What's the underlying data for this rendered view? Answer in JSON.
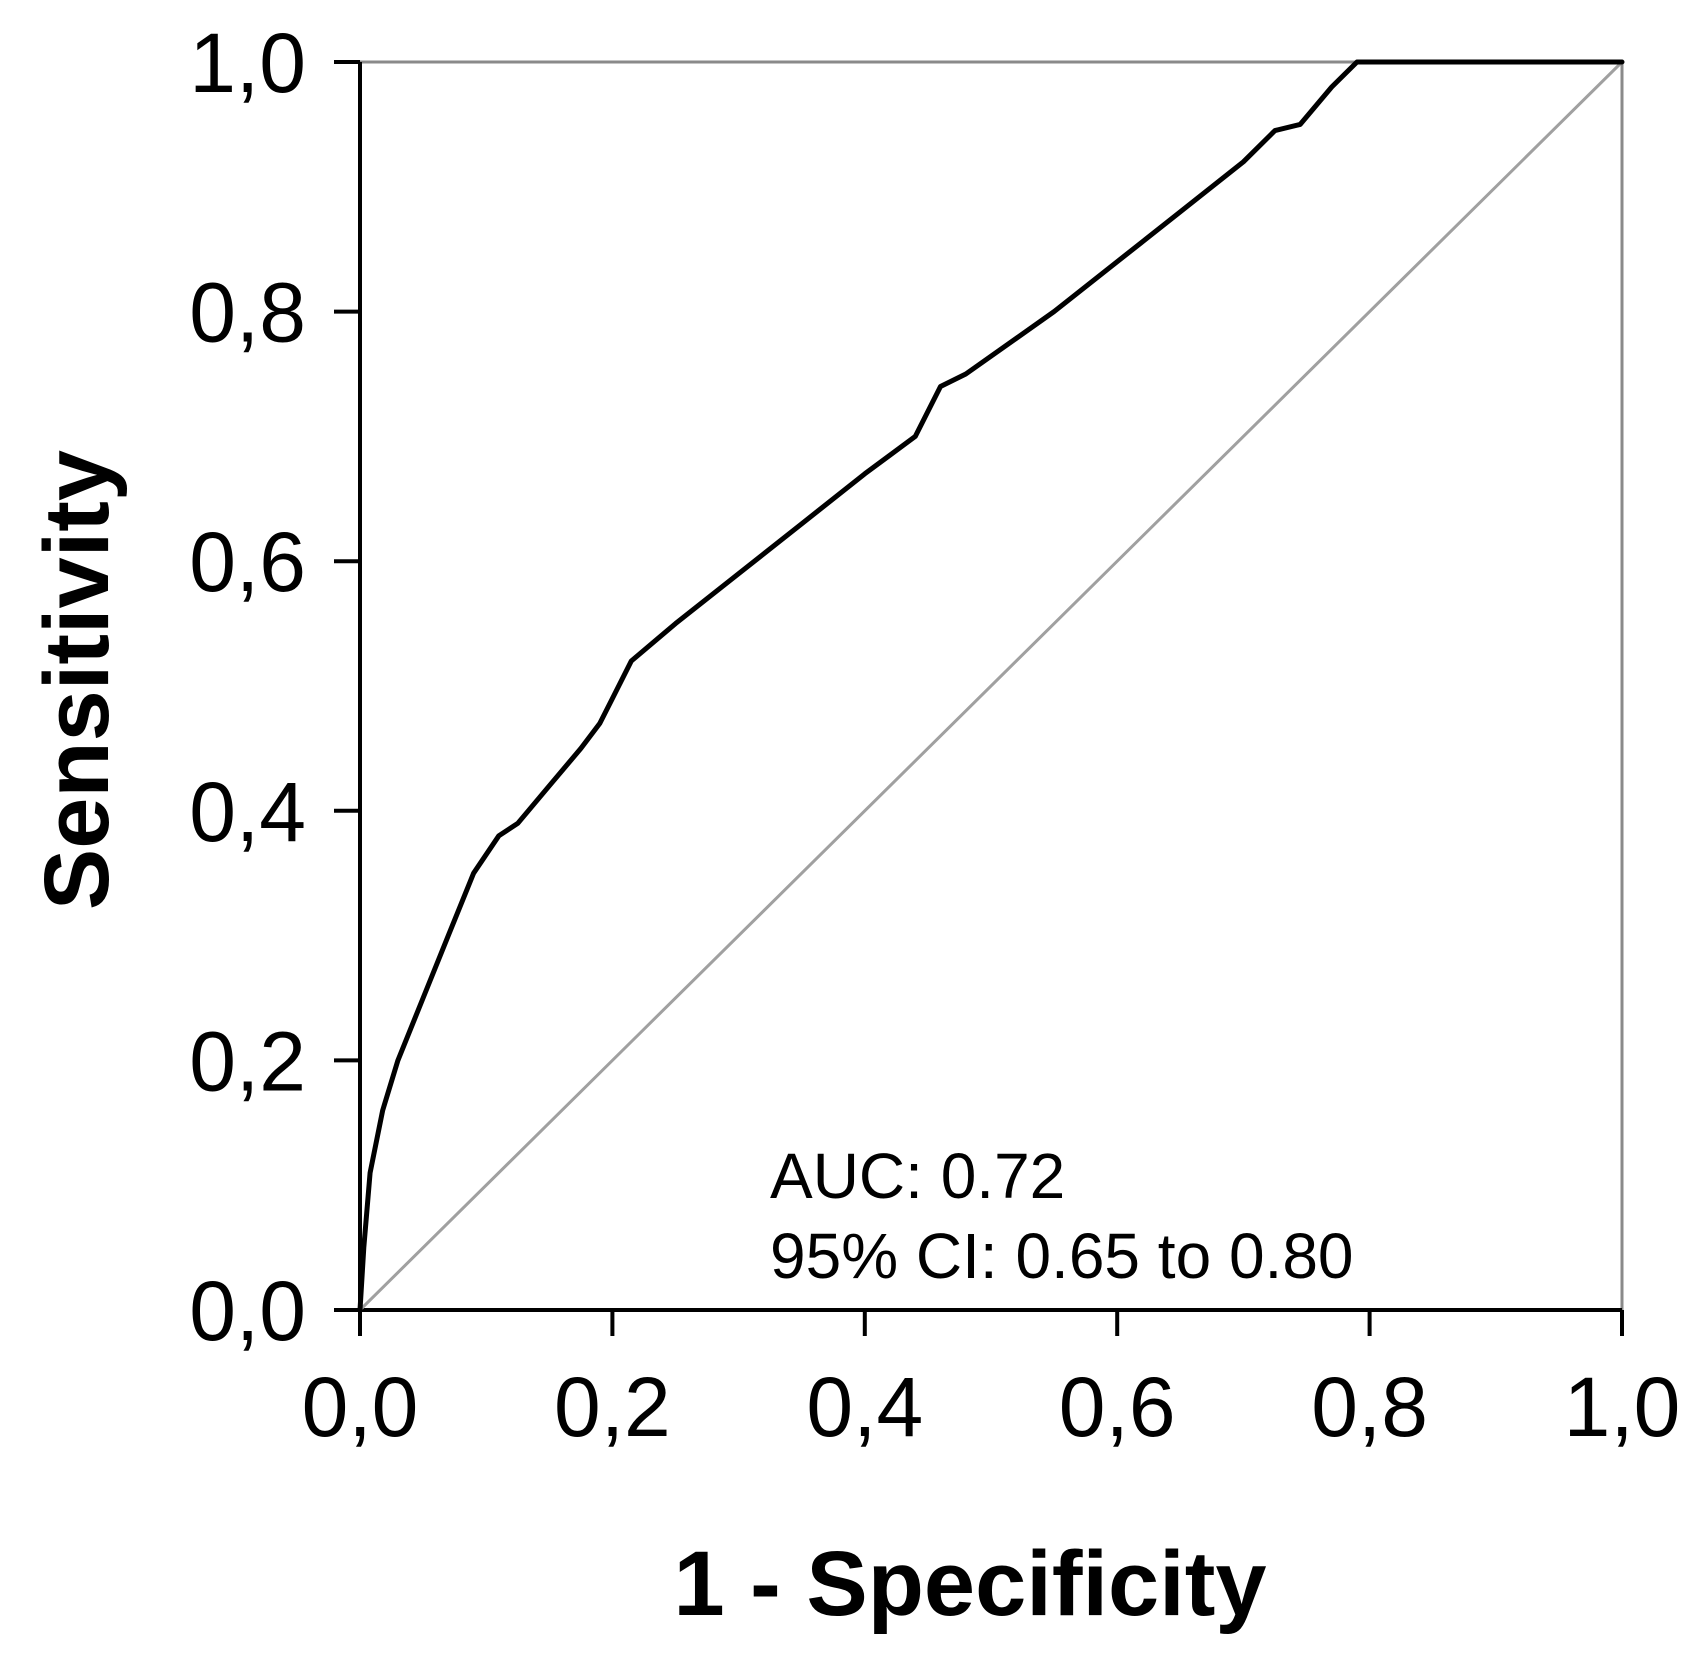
{
  "chart_data": {
    "type": "line",
    "title": "",
    "xlabel": "1 - Specificity",
    "ylabel": "Sensitivity",
    "xlim": [
      0,
      1
    ],
    "ylim": [
      0,
      1
    ],
    "x_ticks": [
      "0,0",
      "0,2",
      "0,4",
      "0,6",
      "0,8",
      "1,0"
    ],
    "y_ticks": [
      "0,0",
      "0,2",
      "0,4",
      "0,6",
      "0,8",
      "1,0"
    ],
    "grid": false,
    "series": [
      {
        "color": "#000000",
        "points": [
          [
            0.0,
            0.0
          ],
          [
            0.003,
            0.05
          ],
          [
            0.008,
            0.11
          ],
          [
            0.018,
            0.16
          ],
          [
            0.03,
            0.2
          ],
          [
            0.05,
            0.25
          ],
          [
            0.07,
            0.3
          ],
          [
            0.09,
            0.35
          ],
          [
            0.11,
            0.38
          ],
          [
            0.125,
            0.39
          ],
          [
            0.15,
            0.42
          ],
          [
            0.175,
            0.45
          ],
          [
            0.19,
            0.47
          ],
          [
            0.2,
            0.49
          ],
          [
            0.215,
            0.52
          ],
          [
            0.25,
            0.55
          ],
          [
            0.3,
            0.59
          ],
          [
            0.35,
            0.63
          ],
          [
            0.4,
            0.67
          ],
          [
            0.44,
            0.7
          ],
          [
            0.46,
            0.74
          ],
          [
            0.48,
            0.75
          ],
          [
            0.55,
            0.8
          ],
          [
            0.6,
            0.84
          ],
          [
            0.65,
            0.88
          ],
          [
            0.7,
            0.92
          ],
          [
            0.725,
            0.945
          ],
          [
            0.745,
            0.95
          ],
          [
            0.77,
            0.98
          ],
          [
            0.79,
            1.0
          ],
          [
            0.85,
            1.0
          ],
          [
            1.0,
            1.0
          ]
        ]
      },
      {
        "color": "#a0a0a0",
        "points": [
          [
            0,
            0
          ],
          [
            1,
            1
          ]
        ]
      }
    ],
    "annotations": [
      "AUC: 0.72",
      "95% CI: 0.65 to 0.80"
    ]
  }
}
